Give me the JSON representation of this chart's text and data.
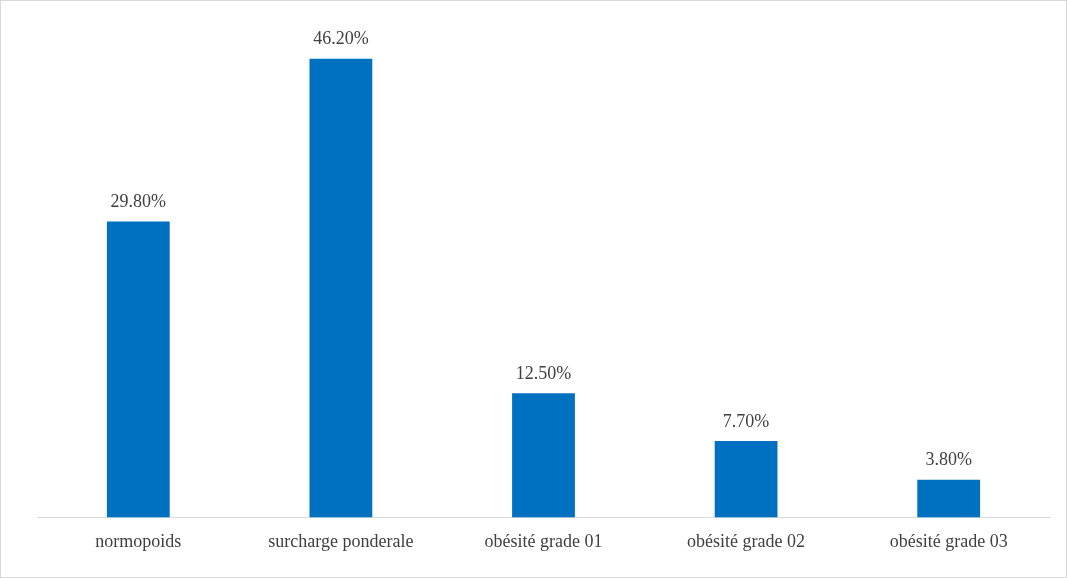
{
  "chart_data": {
    "type": "bar",
    "categories": [
      "normopoids",
      "surcharge ponderale",
      "obésité grade 01",
      "obésité grade 02",
      "obésité grade 03"
    ],
    "values": [
      29.8,
      46.2,
      12.5,
      7.7,
      3.8
    ],
    "color": "#0070c0",
    "value_labels": [
      "29.80%",
      "46.20%",
      "12.50%",
      "7.70%",
      "3.80%"
    ],
    "grid": false,
    "legend": false
  }
}
